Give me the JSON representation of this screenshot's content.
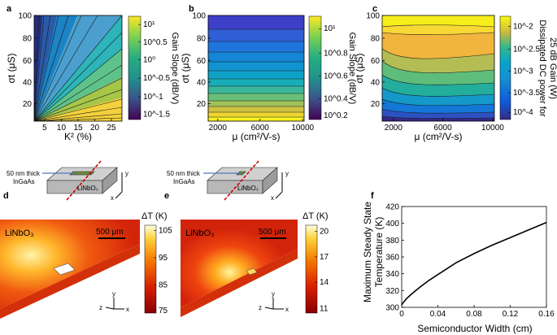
{
  "panel_labels": [
    "a",
    "b",
    "c",
    "d",
    "e",
    "f"
  ],
  "panel_a": {
    "xlabel": "K² (%)",
    "ylabel": "σt (μS)",
    "xticks": [
      "5",
      "10",
      "15",
      "20",
      "25"
    ],
    "yticks": [
      "20",
      "40",
      "60",
      "80",
      "100"
    ],
    "cbar_label": "Gain Slope (dB/V)",
    "cbar_ticks": [
      "10¹",
      "10^0.5",
      "10⁰",
      "10^-0.5",
      "10^-1",
      "10^-1.5"
    ]
  },
  "panel_b": {
    "xlabel": "μ (cm²/V-s)",
    "ylabel": "σt (μS)",
    "xticks": [
      "2000",
      "6000",
      "10000"
    ],
    "yticks": [
      "20",
      "40",
      "60",
      "80",
      "100"
    ],
    "cbar_label": "Gain Slope (dB/V)",
    "cbar_ticks": [
      "10¹",
      "10^0.8",
      "10^0.6",
      "10^0.4",
      "10^0.2"
    ]
  },
  "panel_c": {
    "xlabel": "μ (cm²/V-s)",
    "ylabel": "σt (μS)",
    "xticks": [
      "2000",
      "6000",
      "10000"
    ],
    "yticks": [
      "20",
      "40",
      "60",
      "80",
      "100"
    ],
    "cbar_label_line1": "Dissipated DC power for",
    "cbar_label_line2": "25 dB Gain (W)",
    "cbar_ticks": [
      "10^-2",
      "10^-2.5",
      "10^-3",
      "10^-3.5",
      "10^-4"
    ]
  },
  "panel_d": {
    "film_label_1": "50 nm thick",
    "film_label_2": "InGaAs",
    "substrate": "LiNbO₃",
    "map_label": "LiNbO₃",
    "scalebar": "500 μm",
    "cbar_title": "ΔT (K)",
    "cbar_ticks": [
      "105",
      "95",
      "85",
      "75"
    ],
    "axes": [
      "x",
      "y",
      "z"
    ]
  },
  "panel_e": {
    "film_label_1": "50 nm thick",
    "film_label_2": "InGaAs",
    "substrate": "LiNbO₃",
    "map_label": "LiNbO₃",
    "scalebar": "500 μm",
    "cbar_title": "ΔT (K)",
    "cbar_ticks": [
      "20",
      "17",
      "14",
      "11"
    ],
    "axes": [
      "x",
      "y",
      "z"
    ]
  },
  "chart_data": [
    {
      "type": "line",
      "panel": "f",
      "title": "",
      "xlabel": "Semiconductor Width (cm)",
      "ylabel_line1": "Maximum Steady State",
      "ylabel_line2": "Temperature (K)",
      "xlim": [
        0,
        0.16
      ],
      "ylim": [
        300,
        420
      ],
      "xticks": [
        "0",
        "0.04",
        "0.08",
        "0.12",
        "0.16"
      ],
      "yticks": [
        "300",
        "320",
        "340",
        "360",
        "380",
        "400",
        "420"
      ],
      "series": [
        {
          "name": "Maximum steady state temperature",
          "x": [
            0.0,
            0.002,
            0.005,
            0.01,
            0.02,
            0.03,
            0.04,
            0.06,
            0.08,
            0.1,
            0.12,
            0.14,
            0.16
          ],
          "values": [
            303,
            306,
            310,
            315,
            324,
            332,
            339,
            353,
            364,
            374,
            383,
            392,
            401
          ]
        }
      ]
    }
  ]
}
